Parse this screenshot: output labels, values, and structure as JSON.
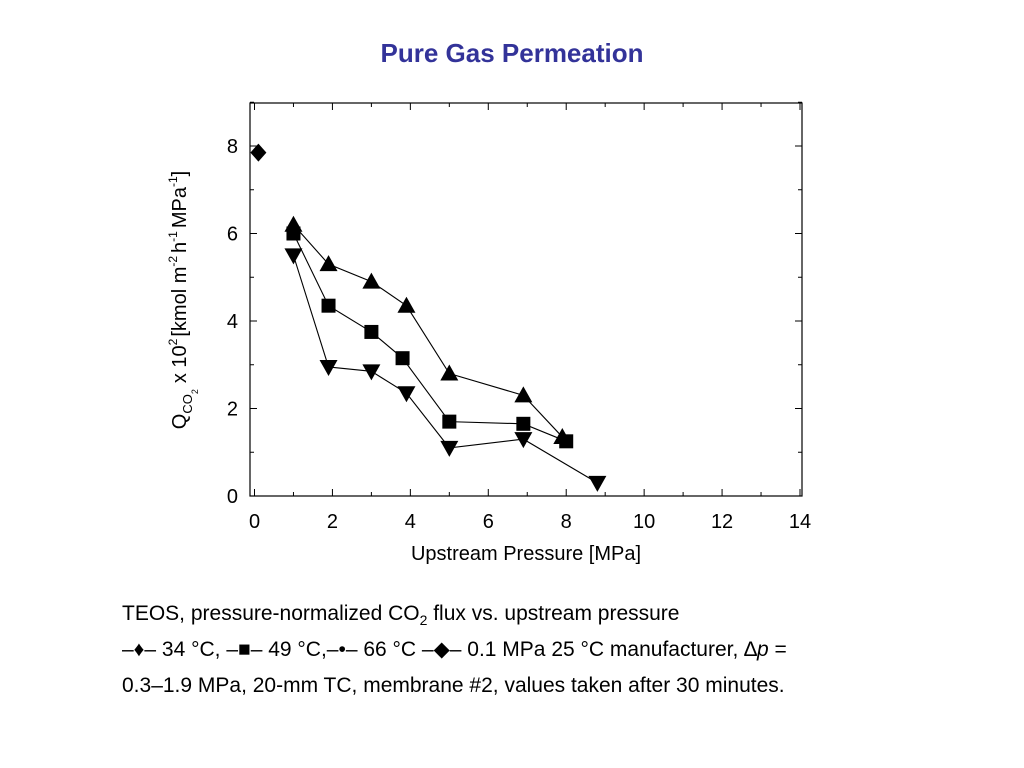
{
  "title": "Pure Gas Permeation",
  "chart_data": {
    "type": "scatter",
    "xlabel": "Upstream Pressure [MPa]",
    "ylabel": {
      "q": "Q",
      "sub": "CO",
      "subsub": "2",
      "x": "x 10",
      "exp": "2",
      "unit": "[kmol m",
      "unitexp1": "-2",
      "unit2": "h",
      "unitexp2": "-1",
      "unit3": "MPa",
      "unitexp3": "-1",
      "close": "]"
    },
    "xlim": [
      0,
      14
    ],
    "ylim": [
      0,
      9
    ],
    "xticks": [
      0,
      2,
      4,
      6,
      8,
      10,
      12,
      14
    ],
    "yticks": [
      0,
      2,
      4,
      6,
      8
    ],
    "xtick_labels": [
      "0",
      "2",
      "4",
      "6",
      "8",
      "10",
      "12",
      "14"
    ],
    "ytick_labels": [
      "0",
      "2",
      "4",
      "6",
      "8"
    ],
    "series": [
      {
        "marker": "triangle-up",
        "x": [
          1.0,
          1.9,
          3.0,
          3.9,
          5.0,
          6.9,
          7.9
        ],
        "y": [
          6.2,
          5.3,
          4.9,
          4.35,
          2.8,
          2.3,
          1.35
        ]
      },
      {
        "marker": "square",
        "x": [
          1.0,
          1.9,
          3.0,
          3.8,
          5.0,
          6.9,
          8.0
        ],
        "y": [
          6.0,
          4.35,
          3.75,
          3.15,
          1.7,
          1.65,
          1.25
        ]
      },
      {
        "marker": "triangle-down",
        "x": [
          1.0,
          1.9,
          3.0,
          3.9,
          5.0,
          6.9,
          8.8
        ],
        "y": [
          5.5,
          2.95,
          2.85,
          2.35,
          1.1,
          1.3,
          0.3
        ]
      },
      {
        "marker": "diamond",
        "x": [
          0.1
        ],
        "y": [
          7.85
        ]
      }
    ],
    "grid": false,
    "legend": "none"
  },
  "caption": {
    "line1_pre": "TEOS, pressure-normalized CO",
    "line1_sub": "2",
    "line1_post": " flux vs. upstream pressure",
    "line2_a": "–♦– 34 °C, –■– 49 °C,–•– 66 °C –◆– 0.1 MPa 25 °C manufacturer, ∆",
    "line2_p": "p",
    "line2_b": " =",
    "line3": "0.3–1.9 MPa, 20-mm TC, membrane #2, values taken after 30 minutes."
  }
}
